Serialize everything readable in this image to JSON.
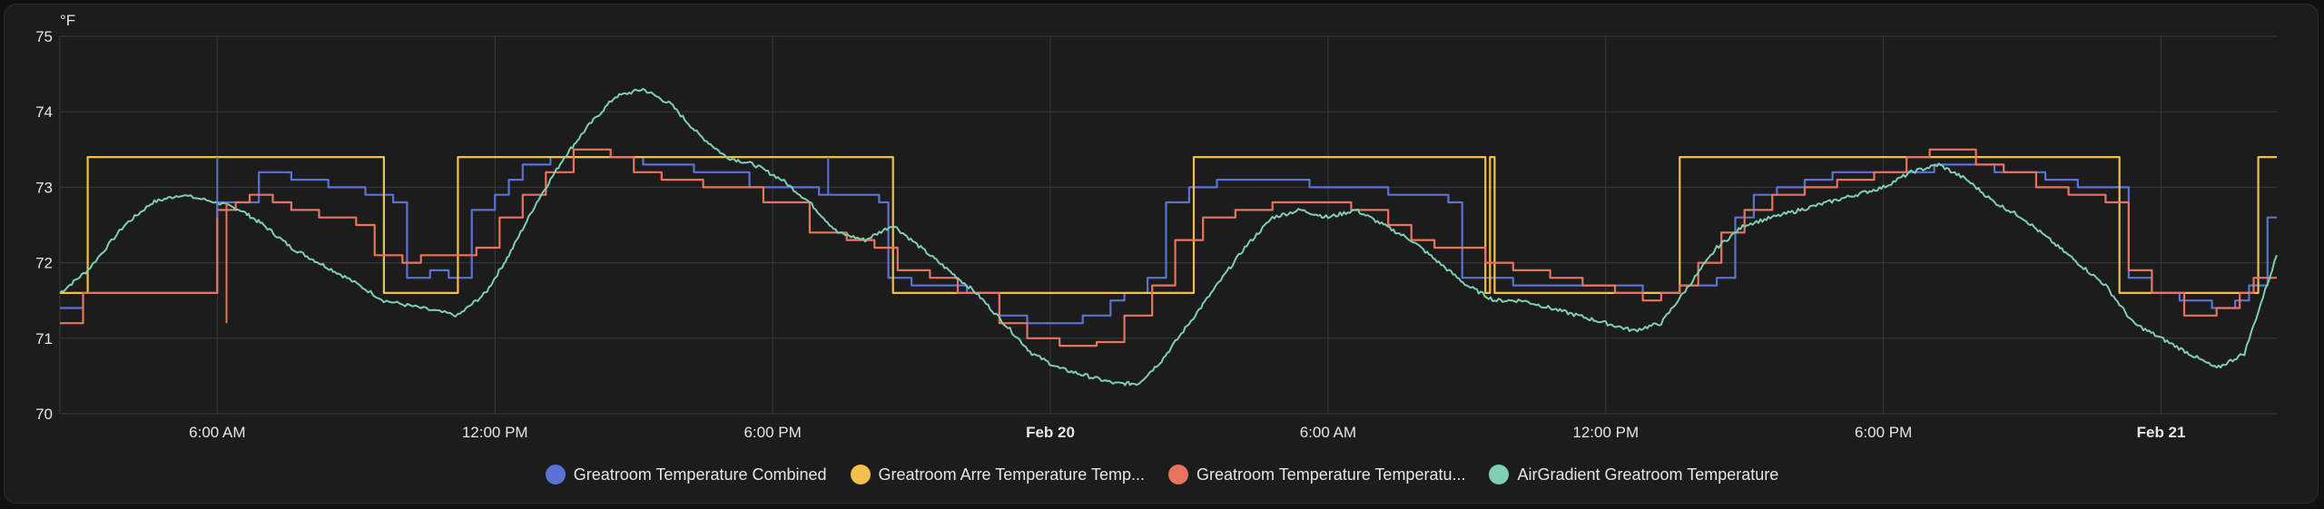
{
  "chart_data": {
    "type": "line",
    "y_unit": "°F",
    "ylim": [
      70,
      75
    ],
    "y_ticks": [
      "70",
      "71",
      "72",
      "73",
      "74",
      "75"
    ],
    "x_ticks": [
      {
        "label": "6:00 AM",
        "hour": 6,
        "bold": false
      },
      {
        "label": "12:00 PM",
        "hour": 12,
        "bold": false
      },
      {
        "label": "6:00 PM",
        "hour": 18,
        "bold": false
      },
      {
        "label": "Feb 20",
        "hour": 24,
        "bold": true
      },
      {
        "label": "6:00 AM",
        "hour": 30,
        "bold": false
      },
      {
        "label": "12:00 PM",
        "hour": 36,
        "bold": false
      },
      {
        "label": "6:00 PM",
        "hour": 42,
        "bold": false
      },
      {
        "label": "Feb 21",
        "hour": 48,
        "bold": true
      }
    ],
    "xlim": [
      2.6,
      50.5
    ],
    "grid": true,
    "legend_position": "bottom-center",
    "series": [
      {
        "name": "Greatroom Temperature Combined",
        "color": "#5b72d4",
        "step": true,
        "points": [
          [
            2.6,
            71.4
          ],
          [
            3.1,
            71.6
          ],
          [
            6.0,
            72.8
          ],
          [
            6.9,
            73.2
          ],
          [
            7.6,
            73.1
          ],
          [
            8.4,
            73.0
          ],
          [
            9.2,
            72.9
          ],
          [
            9.8,
            72.8
          ],
          [
            10.1,
            71.8
          ],
          [
            10.6,
            71.9
          ],
          [
            11.0,
            71.8
          ],
          [
            11.5,
            72.7
          ],
          [
            12.0,
            72.9
          ],
          [
            12.3,
            73.1
          ],
          [
            12.6,
            73.3
          ],
          [
            13.2,
            73.4
          ],
          [
            14.5,
            73.4
          ],
          [
            15.2,
            73.3
          ],
          [
            16.3,
            73.2
          ],
          [
            17.5,
            73.0
          ],
          [
            19.0,
            72.9
          ],
          [
            20.3,
            72.8
          ],
          [
            20.5,
            71.8
          ],
          [
            21.0,
            71.7
          ],
          [
            22.2,
            71.6
          ],
          [
            22.9,
            71.3
          ],
          [
            23.5,
            71.2
          ],
          [
            24.7,
            71.3
          ],
          [
            25.3,
            71.5
          ],
          [
            25.6,
            71.6
          ],
          [
            26.1,
            71.8
          ],
          [
            26.5,
            72.8
          ],
          [
            27.0,
            73.0
          ],
          [
            27.6,
            73.1
          ],
          [
            28.8,
            73.1
          ],
          [
            29.6,
            73.0
          ],
          [
            30.4,
            73.0
          ],
          [
            31.3,
            72.9
          ],
          [
            32.0,
            72.9
          ],
          [
            32.6,
            72.8
          ],
          [
            32.9,
            71.8
          ],
          [
            34.0,
            71.7
          ],
          [
            35.0,
            71.7
          ],
          [
            36.1,
            71.7
          ],
          [
            36.8,
            71.6
          ],
          [
            37.6,
            71.7
          ],
          [
            38.4,
            71.8
          ],
          [
            38.8,
            72.6
          ],
          [
            39.2,
            72.9
          ],
          [
            39.7,
            73.0
          ],
          [
            40.3,
            73.1
          ],
          [
            40.9,
            73.2
          ],
          [
            42.3,
            73.2
          ],
          [
            43.1,
            73.3
          ],
          [
            44.4,
            73.2
          ],
          [
            45.5,
            73.1
          ],
          [
            46.2,
            73.0
          ],
          [
            47.0,
            73.0
          ],
          [
            47.3,
            71.8
          ],
          [
            47.8,
            71.6
          ],
          [
            48.4,
            71.5
          ],
          [
            49.1,
            71.4
          ],
          [
            49.6,
            71.5
          ],
          [
            49.9,
            71.7
          ],
          [
            50.3,
            72.6
          ],
          [
            50.5,
            72.6
          ]
        ]
      },
      {
        "name": "Greatroom Arre Temperature Temp...",
        "color": "#f2c04a",
        "step": true,
        "points": [
          [
            2.6,
            71.6
          ],
          [
            3.2,
            73.4
          ],
          [
            9.6,
            73.4
          ],
          [
            9.6,
            71.6
          ],
          [
            11.2,
            71.6
          ],
          [
            11.2,
            73.4
          ],
          [
            20.6,
            73.4
          ],
          [
            20.6,
            71.6
          ],
          [
            27.1,
            71.6
          ],
          [
            27.1,
            73.4
          ],
          [
            33.4,
            73.4
          ],
          [
            33.4,
            71.6
          ],
          [
            33.5,
            71.6
          ],
          [
            33.5,
            73.4
          ],
          [
            33.6,
            73.4
          ],
          [
            33.6,
            71.6
          ],
          [
            37.6,
            71.6
          ],
          [
            37.6,
            73.4
          ],
          [
            47.1,
            73.4
          ],
          [
            47.1,
            71.6
          ],
          [
            50.1,
            71.6
          ],
          [
            50.1,
            73.4
          ],
          [
            50.5,
            73.4
          ]
        ]
      },
      {
        "name": "Greatroom Temperature Temperatu...",
        "color": "#e8735f",
        "step": true,
        "points": [
          [
            2.6,
            71.2
          ],
          [
            3.1,
            71.6
          ],
          [
            6.0,
            72.7
          ],
          [
            6.4,
            72.8
          ],
          [
            6.7,
            72.9
          ],
          [
            7.2,
            72.8
          ],
          [
            7.6,
            72.7
          ],
          [
            8.2,
            72.6
          ],
          [
            9.0,
            72.5
          ],
          [
            9.4,
            72.1
          ],
          [
            10.0,
            72.0
          ],
          [
            10.4,
            72.1
          ],
          [
            11.0,
            72.1
          ],
          [
            11.6,
            72.2
          ],
          [
            12.1,
            72.6
          ],
          [
            12.6,
            72.9
          ],
          [
            13.1,
            73.2
          ],
          [
            13.7,
            73.5
          ],
          [
            14.5,
            73.4
          ],
          [
            15.0,
            73.2
          ],
          [
            15.6,
            73.1
          ],
          [
            16.5,
            73.0
          ],
          [
            17.8,
            72.8
          ],
          [
            18.8,
            72.4
          ],
          [
            19.6,
            72.3
          ],
          [
            20.2,
            72.2
          ],
          [
            20.7,
            71.9
          ],
          [
            21.4,
            71.8
          ],
          [
            22.0,
            71.6
          ],
          [
            22.9,
            71.2
          ],
          [
            23.5,
            71.0
          ],
          [
            24.2,
            70.9
          ],
          [
            25.0,
            70.95
          ],
          [
            25.6,
            71.3
          ],
          [
            26.2,
            71.7
          ],
          [
            26.7,
            72.3
          ],
          [
            27.3,
            72.6
          ],
          [
            28.0,
            72.7
          ],
          [
            28.8,
            72.8
          ],
          [
            29.6,
            72.8
          ],
          [
            30.5,
            72.7
          ],
          [
            31.3,
            72.5
          ],
          [
            31.8,
            72.3
          ],
          [
            32.3,
            72.2
          ],
          [
            32.8,
            72.2
          ],
          [
            33.4,
            72.0
          ],
          [
            34.0,
            71.9
          ],
          [
            34.8,
            71.8
          ],
          [
            35.5,
            71.7
          ],
          [
            36.2,
            71.6
          ],
          [
            36.8,
            71.5
          ],
          [
            37.2,
            71.6
          ],
          [
            37.6,
            71.7
          ],
          [
            38.0,
            72.0
          ],
          [
            38.5,
            72.4
          ],
          [
            39.0,
            72.7
          ],
          [
            39.6,
            72.9
          ],
          [
            40.3,
            73.0
          ],
          [
            41.0,
            73.1
          ],
          [
            41.8,
            73.2
          ],
          [
            42.5,
            73.4
          ],
          [
            43.0,
            73.5
          ],
          [
            44.0,
            73.3
          ],
          [
            44.6,
            73.2
          ],
          [
            45.3,
            73.0
          ],
          [
            46.0,
            72.9
          ],
          [
            46.8,
            72.8
          ],
          [
            47.3,
            71.9
          ],
          [
            47.8,
            71.6
          ],
          [
            48.5,
            71.3
          ],
          [
            49.2,
            71.4
          ],
          [
            49.7,
            71.6
          ],
          [
            50.0,
            71.8
          ],
          [
            50.5,
            71.8
          ]
        ]
      },
      {
        "name": "AirGradient Greatroom Temperature",
        "color": "#7fcfb0",
        "step": false,
        "points": [
          [
            2.6,
            71.6
          ],
          [
            3.2,
            71.9
          ],
          [
            4.0,
            72.5
          ],
          [
            4.6,
            72.8
          ],
          [
            5.2,
            72.9
          ],
          [
            6.0,
            72.8
          ],
          [
            6.5,
            72.7
          ],
          [
            7.0,
            72.5
          ],
          [
            7.6,
            72.2
          ],
          [
            8.2,
            72.0
          ],
          [
            8.8,
            71.8
          ],
          [
            9.6,
            71.5
          ],
          [
            10.4,
            71.4
          ],
          [
            11.2,
            71.3
          ],
          [
            11.8,
            71.6
          ],
          [
            12.3,
            72.1
          ],
          [
            12.9,
            72.8
          ],
          [
            13.5,
            73.4
          ],
          [
            14.0,
            73.8
          ],
          [
            14.6,
            74.2
          ],
          [
            15.2,
            74.3
          ],
          [
            15.8,
            74.1
          ],
          [
            16.4,
            73.7
          ],
          [
            17.0,
            73.4
          ],
          [
            17.6,
            73.3
          ],
          [
            18.2,
            73.1
          ],
          [
            18.8,
            72.8
          ],
          [
            19.4,
            72.4
          ],
          [
            20.0,
            72.3
          ],
          [
            20.6,
            72.5
          ],
          [
            21.2,
            72.2
          ],
          [
            21.8,
            71.9
          ],
          [
            22.4,
            71.6
          ],
          [
            23.0,
            71.2
          ],
          [
            23.6,
            70.8
          ],
          [
            24.2,
            70.6
          ],
          [
            24.8,
            70.5
          ],
          [
            25.4,
            70.4
          ],
          [
            25.9,
            70.4
          ],
          [
            26.4,
            70.7
          ],
          [
            27.0,
            71.2
          ],
          [
            27.6,
            71.7
          ],
          [
            28.2,
            72.2
          ],
          [
            28.8,
            72.6
          ],
          [
            29.4,
            72.7
          ],
          [
            30.0,
            72.6
          ],
          [
            30.6,
            72.7
          ],
          [
            31.2,
            72.5
          ],
          [
            31.8,
            72.3
          ],
          [
            32.4,
            72.0
          ],
          [
            33.0,
            71.7
          ],
          [
            33.6,
            71.5
          ],
          [
            34.2,
            71.5
          ],
          [
            34.8,
            71.4
          ],
          [
            35.4,
            71.3
          ],
          [
            36.0,
            71.2
          ],
          [
            36.6,
            71.1
          ],
          [
            37.2,
            71.2
          ],
          [
            37.8,
            71.7
          ],
          [
            38.4,
            72.2
          ],
          [
            39.0,
            72.5
          ],
          [
            39.6,
            72.6
          ],
          [
            40.2,
            72.7
          ],
          [
            40.8,
            72.8
          ],
          [
            41.4,
            72.9
          ],
          [
            42.0,
            73.0
          ],
          [
            42.6,
            73.2
          ],
          [
            43.2,
            73.3
          ],
          [
            43.8,
            73.1
          ],
          [
            44.4,
            72.8
          ],
          [
            45.0,
            72.6
          ],
          [
            45.6,
            72.3
          ],
          [
            46.2,
            72.0
          ],
          [
            46.8,
            71.7
          ],
          [
            47.4,
            71.2
          ],
          [
            48.0,
            71.0
          ],
          [
            48.6,
            70.8
          ],
          [
            49.2,
            70.6
          ],
          [
            49.8,
            70.8
          ],
          [
            50.5,
            72.1
          ]
        ]
      }
    ]
  },
  "legend": [
    {
      "label": "Greatroom Temperature Combined",
      "color": "#5b72d4"
    },
    {
      "label": "Greatroom Arre Temperature Temp...",
      "color": "#f2c04a"
    },
    {
      "label": "Greatroom Temperature Temperatu...",
      "color": "#e8735f"
    },
    {
      "label": "AirGradient Greatroom Temperature",
      "color": "#7fcfb0"
    }
  ]
}
